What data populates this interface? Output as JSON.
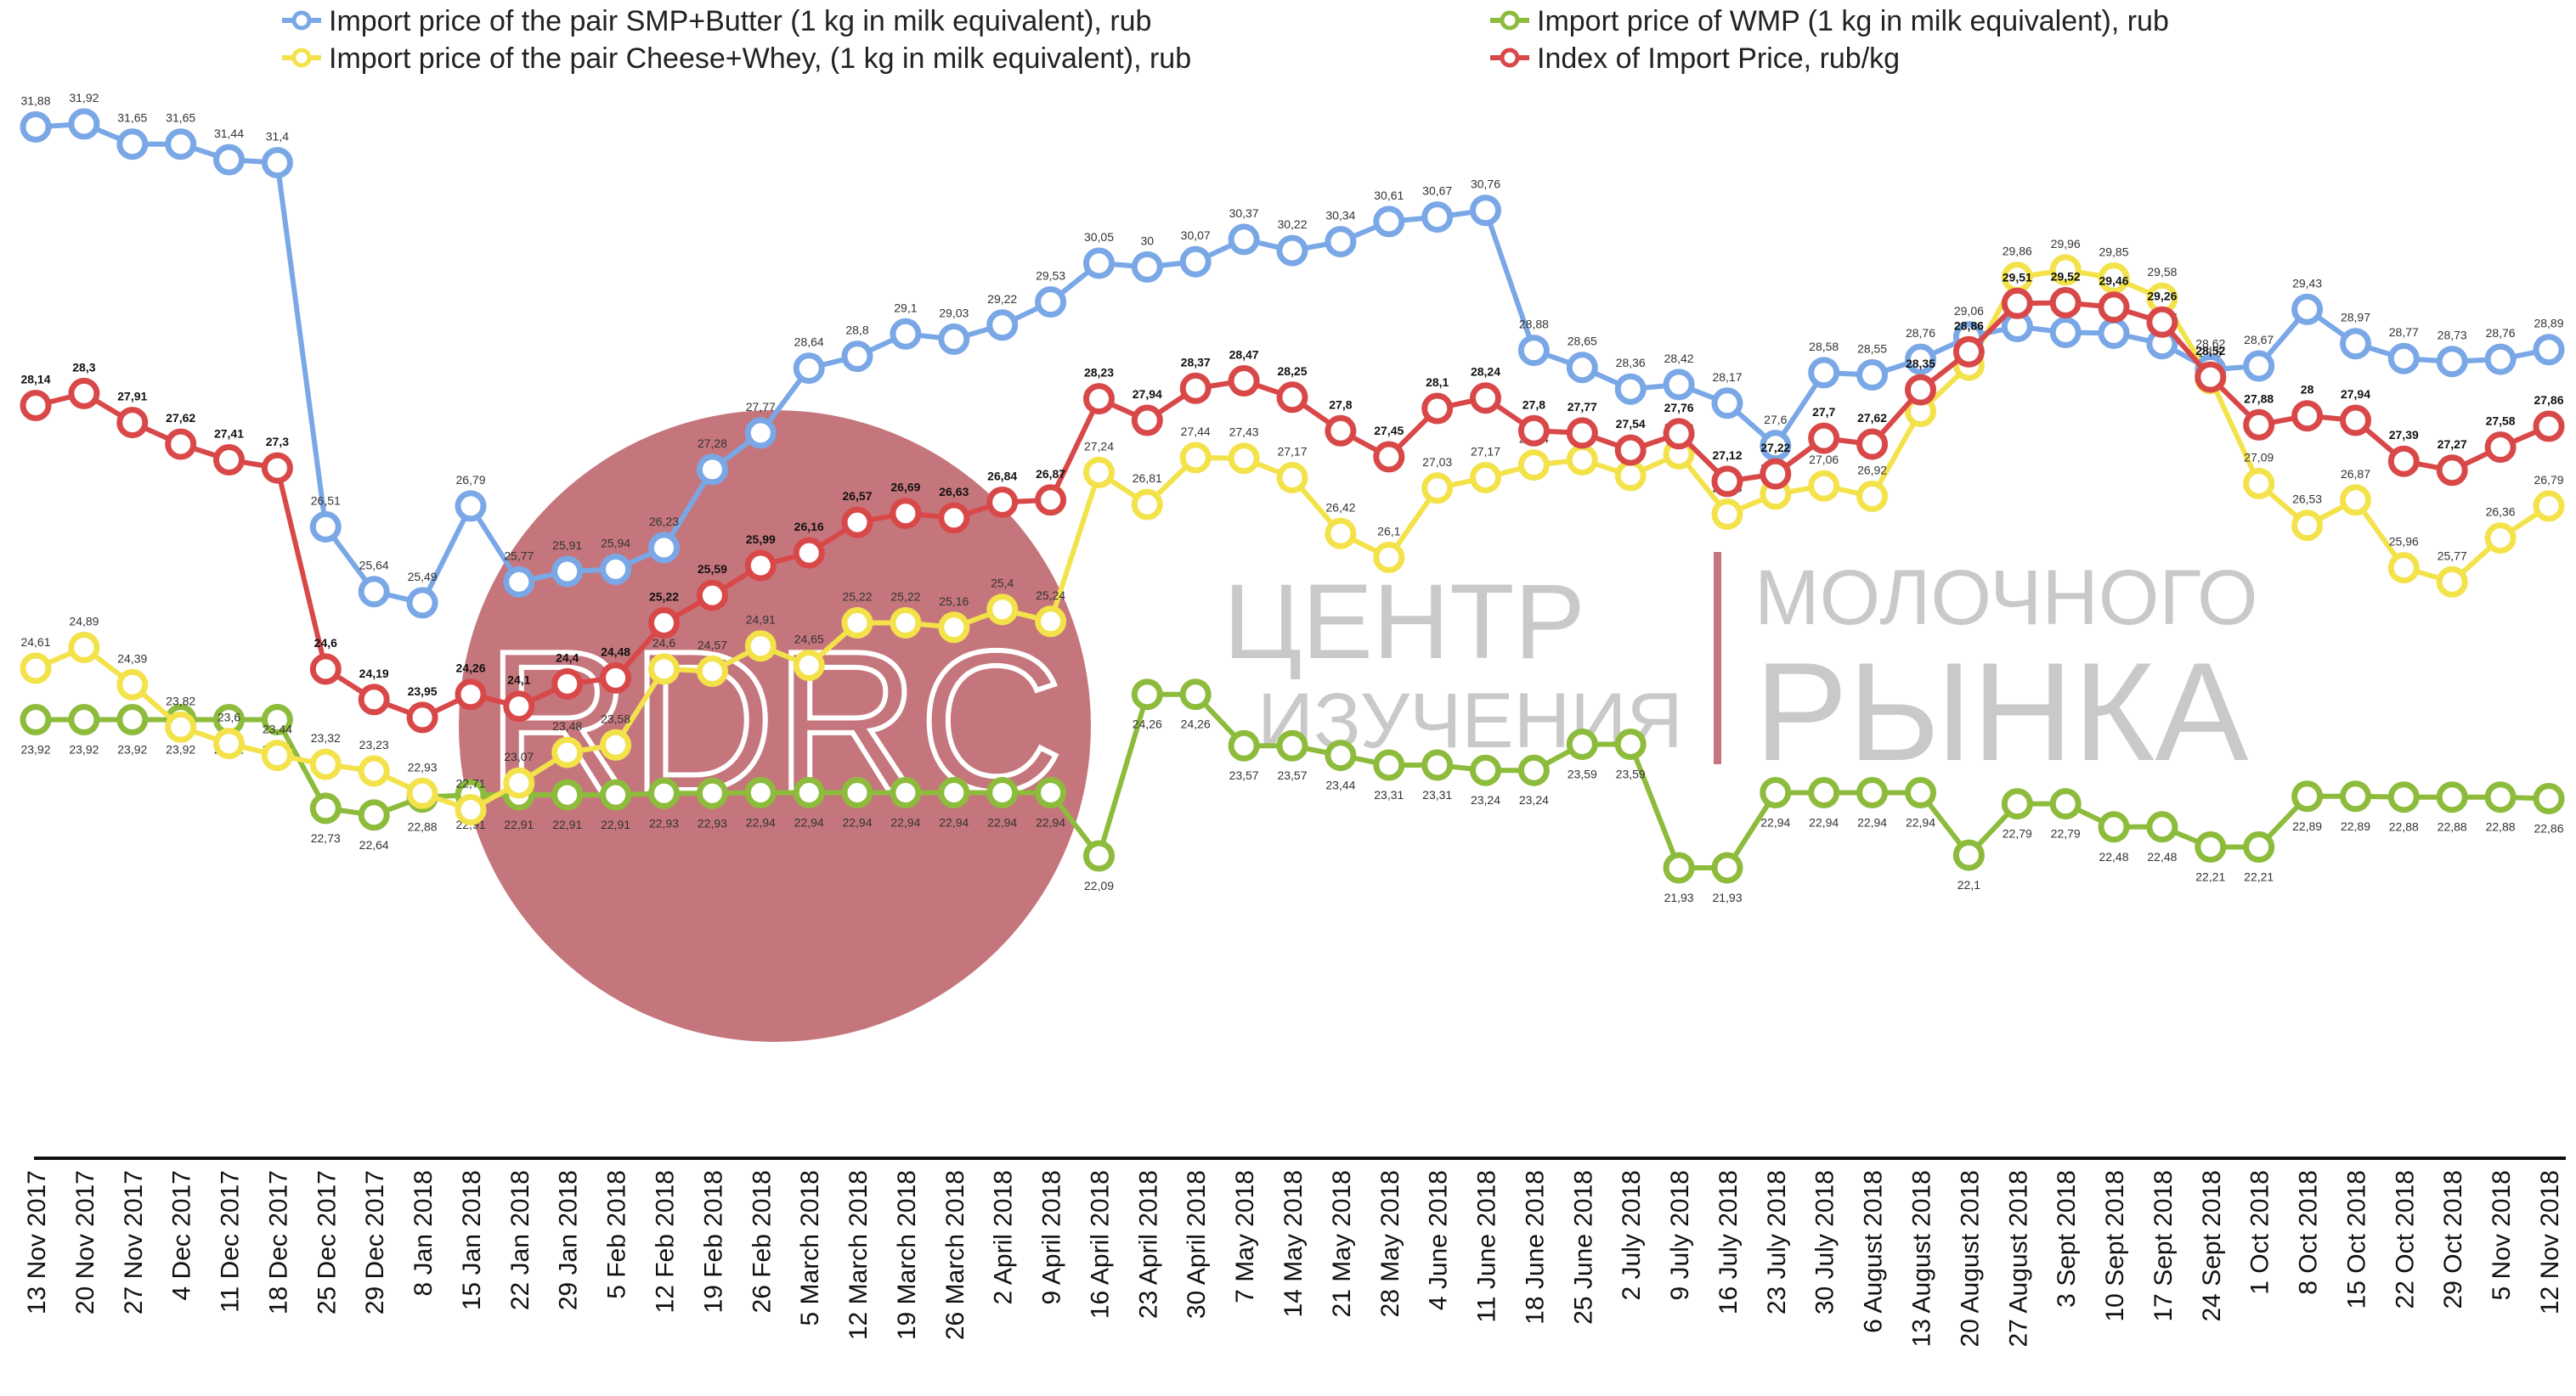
{
  "colors": {
    "smp_butter": "#7aa7e6",
    "cheese_whey": "#f3e24a",
    "wmp": "#8dbb3c",
    "index": "#d94848",
    "watermark_circle": "#c5767c",
    "watermark_text": "#c9c9c9"
  },
  "watermark": {
    "logo": "RDRC",
    "line1a": "ЦЕНТР",
    "line1b": "МОЛОЧНОГО",
    "line2a": "ИЗУЧЕНИЯ",
    "line2b": "РЫНКА"
  },
  "chart_data": {
    "type": "line",
    "title": "",
    "xlabel": "",
    "ylabel": "",
    "grid": false,
    "legend_placement": "top",
    "categories": [
      "13 Nov 2017",
      "20 Nov 2017",
      "27 Nov 2017",
      "4 Dec 2017",
      "11 Dec 2017",
      "18 Dec 2017",
      "25 Dec 2017",
      "29 Dec 2017",
      "8 Jan 2018",
      "15 Jan 2018",
      "22 Jan 2018",
      "29 Jan 2018",
      "5 Feb 2018",
      "12 Feb 2018",
      "19 Feb 2018",
      "26 Feb 2018",
      "5 March 2018",
      "12 March 2018",
      "19 March 2018",
      "26 March 2018",
      "2 April 2018",
      "9 April 2018",
      "16 April 2018",
      "23 April 2018",
      "30 April 2018",
      "7 May 2018",
      "14 May 2018",
      "21 May 2018",
      "28 May 2018",
      "4 June 2018",
      "11 June 2018",
      "18 June 2018",
      "25 June 2018",
      "2 July 2018",
      "9 July 2018",
      "16 July 2018",
      "23 July 2018",
      "30 July 2018",
      "6 August 2018",
      "13 August 2018",
      "20 August 2018",
      "27 August 2018",
      "3 Sept 2018",
      "10 Sept 2018",
      "17 Sept 2018",
      "24 Sept 2018",
      "1 Oct 2018",
      "8 Oct 2018",
      "15 Oct 2018",
      "22 Oct 2018",
      "29 Oct 2018",
      "5 Nov 2018",
      "12 Nov 2018"
    ],
    "series": [
      {
        "key": "smp_butter",
        "name": "Import price of the pair SMP+Butter (1 kg in milk equivalent), rub",
        "labels": [
          "31,88",
          "31,92",
          "31,65",
          "31,65",
          "31,44",
          "31,4",
          "26,51",
          "25,64",
          "25,49",
          "26,79",
          "25,77",
          "25,91",
          "25,94",
          "26,23",
          "27,28",
          "27,77",
          "28,64",
          "28,8",
          "29,1",
          "29,03",
          "29,22",
          "29,53",
          "30,05",
          "30",
          "30,07",
          "30,37",
          "30,22",
          "30,34",
          "30,61",
          "30,67",
          "30,76",
          "28,88",
          "28,65",
          "28,36",
          "28,42",
          "28,17",
          "27,6",
          "28,58",
          "28,55",
          "28,76",
          "29,06",
          "29,2",
          "29,12",
          "29,11",
          "28,97",
          "28,62",
          "28,67",
          "29,43",
          "28,97",
          "28,77",
          "28,73",
          "28,76",
          "28,89"
        ],
        "values": [
          31.88,
          31.92,
          31.65,
          31.65,
          31.44,
          31.4,
          26.51,
          25.64,
          25.49,
          26.79,
          25.77,
          25.91,
          25.94,
          26.23,
          27.28,
          27.77,
          28.64,
          28.8,
          29.1,
          29.03,
          29.22,
          29.53,
          30.05,
          30,
          30.07,
          30.37,
          30.22,
          30.34,
          30.61,
          30.67,
          30.76,
          28.88,
          28.65,
          28.36,
          28.42,
          28.17,
          27.6,
          28.58,
          28.55,
          28.76,
          29.06,
          29.2,
          29.12,
          29.11,
          28.97,
          28.62,
          28.67,
          29.43,
          28.97,
          28.77,
          28.73,
          28.76,
          28.89
        ]
      },
      {
        "key": "cheese_whey",
        "name": "Import price of the pair Cheese+Whey,  (1 kg in milk equivalent), rub",
        "labels": [
          "24,61",
          "24,89",
          "24,39",
          "23,82",
          "23,6",
          "23,44",
          "23,32",
          "23,23",
          "22,93",
          "22,71",
          "23,07",
          "23,48",
          "23,58",
          "24,6",
          "24,57",
          "24,91",
          "24,65",
          "25,22",
          "25,22",
          "25,16",
          "25,4",
          "25,24",
          "27,24",
          "26,81",
          "27,44",
          "27,43",
          "27,17",
          "26,42",
          "26,1",
          "27,03",
          "27,17",
          "27,34",
          "27,41",
          "27,2",
          "27,49",
          "26,68",
          "26,95",
          "27,06",
          "26,92",
          "28,06",
          "28,68",
          "29,86",
          "29,96",
          "29,85",
          "29,58",
          "28,5",
          "27,09",
          "26,53",
          "26,87",
          "25,96",
          "25,77",
          "26,36",
          "26,79"
        ],
        "values": [
          24.61,
          24.89,
          24.39,
          23.82,
          23.6,
          23.44,
          23.32,
          23.23,
          22.93,
          22.71,
          23.07,
          23.48,
          23.58,
          24.6,
          24.57,
          24.91,
          24.65,
          25.22,
          25.22,
          25.16,
          25.4,
          25.24,
          27.24,
          26.81,
          27.44,
          27.43,
          27.17,
          26.42,
          26.1,
          27.03,
          27.17,
          27.34,
          27.41,
          27.2,
          27.49,
          26.68,
          26.95,
          27.06,
          26.92,
          28.06,
          28.68,
          29.86,
          29.96,
          29.85,
          29.58,
          28.5,
          27.09,
          26.53,
          26.87,
          25.96,
          25.77,
          26.36,
          26.79
        ]
      },
      {
        "key": "wmp",
        "name": "Import price of WMP (1 kg in milk equivalent), rub",
        "labels": [
          "23,92",
          "23,92",
          "23,92",
          "23,92",
          "23,92",
          "23,92",
          "22,73",
          "22,64",
          "22,88",
          "22,91",
          "22,91",
          "22,91",
          "22,91",
          "22,93",
          "22,93",
          "22,94",
          "22,94",
          "22,94",
          "22,94",
          "22,94",
          "22,94",
          "22,94",
          "22,09",
          "24,26",
          "24,26",
          "23,57",
          "23,57",
          "23,44",
          "23,31",
          "23,31",
          "23,24",
          "23,24",
          "23,59",
          "23,59",
          "21,93",
          "21,93",
          "22,94",
          "22,94",
          "22,94",
          "22,94",
          "22,1",
          "22,79",
          "22,79",
          "22,48",
          "22,48",
          "22,21",
          "22,21",
          "22,89",
          "22,89",
          "22,88",
          "22,88",
          "22,88",
          "22,86"
        ],
        "values": [
          23.92,
          23.92,
          23.92,
          23.92,
          23.92,
          23.92,
          22.73,
          22.64,
          22.88,
          22.91,
          22.91,
          22.91,
          22.91,
          22.93,
          22.93,
          22.94,
          22.94,
          22.94,
          22.94,
          22.94,
          22.94,
          22.94,
          22.09,
          24.26,
          24.26,
          23.57,
          23.57,
          23.44,
          23.31,
          23.31,
          23.24,
          23.24,
          23.59,
          23.59,
          21.93,
          21.93,
          22.94,
          22.94,
          22.94,
          22.94,
          22.1,
          22.79,
          22.79,
          22.48,
          22.48,
          22.21,
          22.21,
          22.89,
          22.89,
          22.88,
          22.88,
          22.88,
          22.86
        ]
      },
      {
        "key": "index",
        "name": "Index of Import Price, rub/kg",
        "labels": [
          "28,14",
          "28,3",
          "27,91",
          "27,62",
          "27,41",
          "27,3",
          "24,6",
          "24,19",
          "23,95",
          "24,26",
          "24,1",
          "24,4",
          "24,48",
          "25,22",
          "25,59",
          "25,99",
          "26,16",
          "26,57",
          "26,69",
          "26,63",
          "26,84",
          "26,87",
          "28,23",
          "27,94",
          "28,37",
          "28,47",
          "28,25",
          "27,8",
          "27,45",
          "28,1",
          "28,24",
          "27,8",
          "27,77",
          "27,54",
          "27,76",
          "27,12",
          "27,22",
          "27,7",
          "27,62",
          "28,35",
          "28,86",
          "29,51",
          "29,52",
          "29,46",
          "29,26",
          "28,52",
          "27,88",
          "28",
          "27,94",
          "27,39",
          "27,27",
          "27,58",
          "27,86"
        ],
        "values": [
          28.14,
          28.3,
          27.91,
          27.62,
          27.41,
          27.3,
          24.6,
          24.19,
          23.95,
          24.26,
          24.1,
          24.4,
          24.48,
          25.22,
          25.59,
          25.99,
          26.16,
          26.57,
          26.69,
          26.63,
          26.84,
          26.87,
          28.23,
          27.94,
          28.37,
          28.47,
          28.25,
          27.8,
          27.45,
          28.1,
          28.24,
          27.8,
          27.77,
          27.54,
          27.76,
          27.12,
          27.22,
          27.7,
          27.62,
          28.35,
          28.86,
          29.51,
          29.52,
          29.46,
          29.26,
          28.52,
          27.88,
          28,
          27.94,
          27.39,
          27.27,
          27.58,
          27.86
        ]
      }
    ]
  }
}
